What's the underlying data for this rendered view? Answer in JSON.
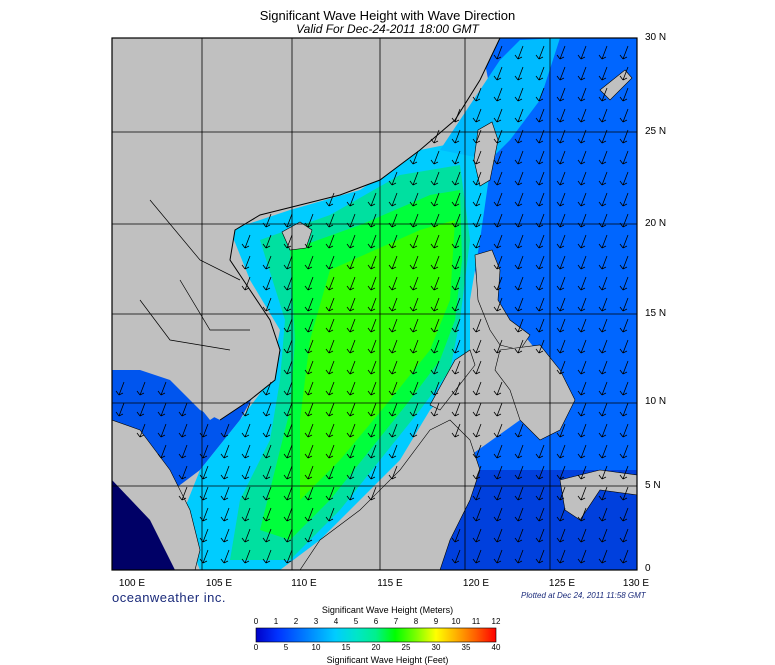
{
  "title": "Significant Wave Height with Wave Direction",
  "subtitle": "Valid For Dec-24-2011 18:00 GMT",
  "lat_labels": [
    "30 N",
    "25 N",
    "20 N",
    "15 N",
    "10 N",
    "5 N",
    "0"
  ],
  "lon_labels": [
    "100 E",
    "105 E",
    "110 E",
    "115 E",
    "120 E",
    "125 E",
    "130 E"
  ],
  "brand": "oceanweather inc.",
  "plotted": "Plotted at Dec 24, 2011 11:58 GMT",
  "legend": {
    "title_meters": "Significant Wave Height (Meters)",
    "title_feet": "Significant Wave Height (Feet)",
    "meter_ticks": [
      "0",
      "1",
      "2",
      "3",
      "4",
      "5",
      "6",
      "7",
      "8",
      "9",
      "10",
      "11",
      "12"
    ],
    "feet_ticks": [
      "0",
      "5",
      "10",
      "15",
      "20",
      "25",
      "30",
      "35",
      "40"
    ],
    "colors": [
      "#0000c8",
      "#0033ff",
      "#0066ff",
      "#0099ff",
      "#00ccff",
      "#00e6c8",
      "#00f08c",
      "#00ff00",
      "#80ff00",
      "#ffff00",
      "#ffb400",
      "#ff5a00",
      "#ff0000"
    ]
  },
  "map_colors": {
    "land": "#c0c0c0",
    "deep_blue": "#0033cc",
    "mid_blue": "#0066ff",
    "cyan": "#00ccff",
    "teal": "#00e0a0",
    "green": "#00ff00",
    "dark_navy": "#000066"
  }
}
